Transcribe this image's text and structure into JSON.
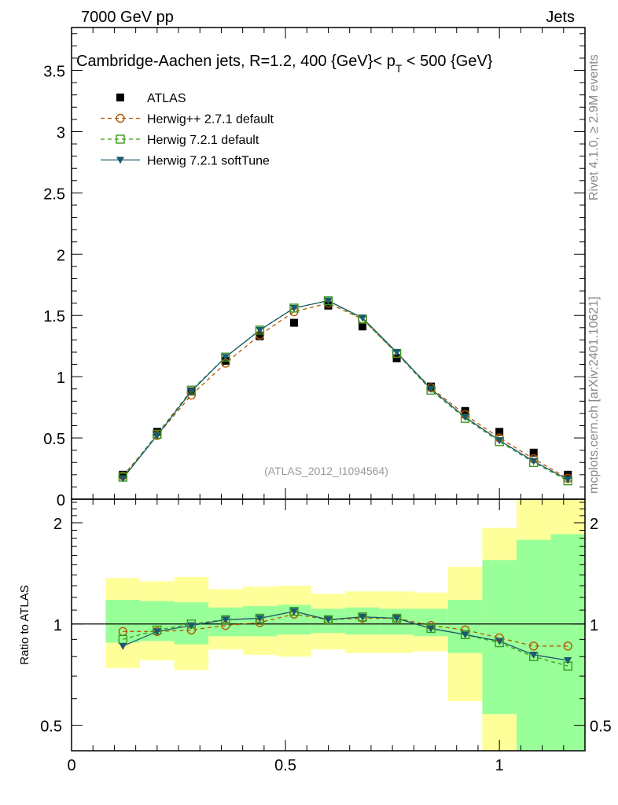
{
  "header": {
    "left": "7000 GeV pp",
    "right": "Jets"
  },
  "side_labels": {
    "rivet": "Rivet 4.1.0, ≥ 2.9M events",
    "mcplots": "mcplots.cern.ch [arXiv:2401.10621]"
  },
  "watermark": "(ATLAS_2012_I1094564)",
  "colors": {
    "atlas": "#000000",
    "herwigpp": "#b35900",
    "herwig_default": "#3a9a1e",
    "herwig_soft": "#1b5a6e",
    "band_inner": "#99ff99",
    "band_outer": "#ffff99"
  },
  "chart_data": [
    {
      "type": "scatter",
      "title": "Cambridge-Aachen jets, R=1.2,  400 {GeV}< p_T < 500 {GeV}",
      "title_parts": {
        "main": "Cambridge-Aachen jets, R=1.2,  400 {GeV}< p",
        "sub": "T",
        "tail": " < 500 {GeV}"
      },
      "xlabel": "",
      "ylabel": "",
      "xlim": [
        0,
        1.2
      ],
      "ylim": [
        0,
        3.85
      ],
      "yticks": [
        0,
        0.5,
        1,
        1.5,
        2,
        2.5,
        3,
        3.5
      ],
      "ytick_labels": [
        "0",
        "0.5",
        "1",
        "1.5",
        "2",
        "2.5",
        "3",
        "3.5"
      ],
      "legend_position": "top-left",
      "x": [
        0.12,
        0.2,
        0.28,
        0.36,
        0.44,
        0.52,
        0.6,
        0.68,
        0.76,
        0.84,
        0.92,
        1.0,
        1.08,
        1.16
      ],
      "series": [
        {
          "name": "ATLAS",
          "style": "marker",
          "values": [
            0.2,
            0.55,
            0.88,
            1.13,
            1.33,
            1.44,
            1.58,
            1.41,
            1.15,
            0.92,
            0.72,
            0.55,
            0.38,
            0.2
          ]
        },
        {
          "name": "Herwig++ 2.7.1 default",
          "style": "dashed-circle",
          "values": [
            0.19,
            0.52,
            0.85,
            1.11,
            1.34,
            1.53,
            1.6,
            1.47,
            1.19,
            0.91,
            0.69,
            0.5,
            0.33,
            0.17
          ]
        },
        {
          "name": "Herwig 7.2.1 default",
          "style": "dashed-square",
          "values": [
            0.18,
            0.53,
            0.89,
            1.16,
            1.38,
            1.56,
            1.62,
            1.47,
            1.19,
            0.89,
            0.66,
            0.47,
            0.3,
            0.15
          ]
        },
        {
          "name": "Herwig 7.2.1 softTune",
          "style": "solid-triangle",
          "values": [
            0.17,
            0.52,
            0.88,
            1.16,
            1.38,
            1.56,
            1.62,
            1.48,
            1.2,
            0.9,
            0.67,
            0.48,
            0.31,
            0.16
          ]
        }
      ]
    },
    {
      "type": "line",
      "title": "",
      "xlabel": "",
      "ylabel": "Ratio to ATLAS",
      "xlim": [
        0,
        1.2
      ],
      "ylim": [
        0.42,
        2.35
      ],
      "log_y": true,
      "yticks": [
        0.5,
        1,
        2
      ],
      "ytick_labels": [
        "0.5",
        "1",
        "2"
      ],
      "xticks": [
        0,
        0.5,
        1
      ],
      "xtick_labels": [
        "0",
        "0.5",
        "1"
      ],
      "bin_edges": [
        0.08,
        0.16,
        0.24,
        0.32,
        0.4,
        0.48,
        0.56,
        0.64,
        0.72,
        0.8,
        0.88,
        0.96,
        1.04,
        1.12,
        1.2
      ],
      "band_inner": {
        "low": [
          0.88,
          0.89,
          0.87,
          0.92,
          0.92,
          0.93,
          0.94,
          0.93,
          0.93,
          0.92,
          0.82,
          0.54,
          0.4,
          0.4
        ],
        "high": [
          1.18,
          1.17,
          1.16,
          1.12,
          1.13,
          1.14,
          1.11,
          1.12,
          1.11,
          1.11,
          1.18,
          1.55,
          1.78,
          1.85
        ]
      },
      "band_outer": {
        "low": [
          0.74,
          0.78,
          0.73,
          0.84,
          0.81,
          0.8,
          0.84,
          0.82,
          0.82,
          0.83,
          0.59,
          0.3,
          0.3,
          0.3
        ],
        "high": [
          1.37,
          1.34,
          1.38,
          1.27,
          1.29,
          1.3,
          1.23,
          1.25,
          1.25,
          1.24,
          1.48,
          1.93,
          2.5,
          2.5
        ]
      },
      "x": [
        0.12,
        0.2,
        0.28,
        0.36,
        0.44,
        0.52,
        0.6,
        0.68,
        0.76,
        0.84,
        0.92,
        1.0,
        1.08,
        1.16
      ],
      "series": [
        {
          "name": "Herwig++ 2.7.1 default",
          "style": "dashed-circle",
          "values": [
            0.95,
            0.95,
            0.96,
            0.99,
            1.01,
            1.07,
            1.03,
            1.04,
            1.04,
            0.99,
            0.96,
            0.91,
            0.86,
            0.86
          ]
        },
        {
          "name": "Herwig 7.2.1 default",
          "style": "dashed-square",
          "values": [
            0.9,
            0.96,
            1.0,
            1.03,
            1.04,
            1.09,
            1.03,
            1.05,
            1.04,
            0.97,
            0.93,
            0.88,
            0.8,
            0.75
          ]
        },
        {
          "name": "Herwig 7.2.1 softTune",
          "style": "solid-triangle",
          "values": [
            0.86,
            0.95,
            0.99,
            1.03,
            1.04,
            1.09,
            1.03,
            1.05,
            1.04,
            0.97,
            0.93,
            0.89,
            0.81,
            0.78
          ]
        }
      ]
    }
  ]
}
